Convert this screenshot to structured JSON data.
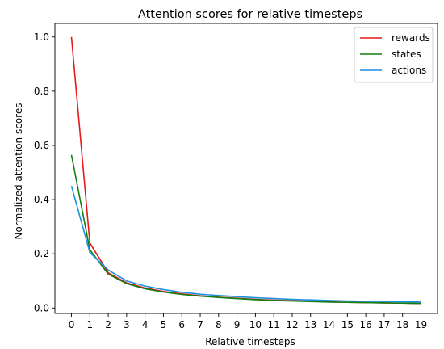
{
  "chart_data": {
    "type": "line",
    "title": "Attention scores for relative timesteps",
    "xlabel": "Relative timesteps",
    "ylabel": "Normalized attention scores",
    "xlim": [
      -0.9,
      19.9
    ],
    "ylim": [
      -0.02,
      1.05
    ],
    "x": [
      0,
      1,
      2,
      3,
      4,
      5,
      6,
      7,
      8,
      9,
      10,
      11,
      12,
      13,
      14,
      15,
      16,
      17,
      18,
      19
    ],
    "x_tick_labels": [
      "0",
      "1",
      "2",
      "3",
      "4",
      "5",
      "6",
      "7",
      "8",
      "9",
      "10",
      "11",
      "12",
      "13",
      "14",
      "15",
      "16",
      "17",
      "18",
      "19"
    ],
    "y_ticks": [
      0.0,
      0.2,
      0.4,
      0.6,
      0.8,
      1.0
    ],
    "y_tick_labels": [
      "0.0",
      "0.2",
      "0.4",
      "0.6",
      "0.8",
      "1.0"
    ],
    "grid": false,
    "legend_position": "top-right",
    "series": [
      {
        "name": "rewards",
        "color": "#e41a1c",
        "values": [
          1.0,
          0.24,
          0.13,
          0.093,
          0.074,
          0.061,
          0.052,
          0.045,
          0.04,
          0.036,
          0.032,
          0.029,
          0.027,
          0.025,
          0.023,
          0.021,
          0.02,
          0.019,
          0.018,
          0.017
        ]
      },
      {
        "name": "states",
        "color": "#108010",
        "values": [
          0.565,
          0.215,
          0.125,
          0.09,
          0.071,
          0.059,
          0.05,
          0.044,
          0.039,
          0.035,
          0.031,
          0.028,
          0.026,
          0.024,
          0.022,
          0.021,
          0.02,
          0.019,
          0.018,
          0.017
        ]
      },
      {
        "name": "actions",
        "color": "#1f8fdf",
        "values": [
          0.45,
          0.205,
          0.14,
          0.1,
          0.081,
          0.068,
          0.058,
          0.051,
          0.046,
          0.042,
          0.038,
          0.035,
          0.032,
          0.03,
          0.028,
          0.026,
          0.025,
          0.024,
          0.023,
          0.022
        ]
      }
    ]
  }
}
